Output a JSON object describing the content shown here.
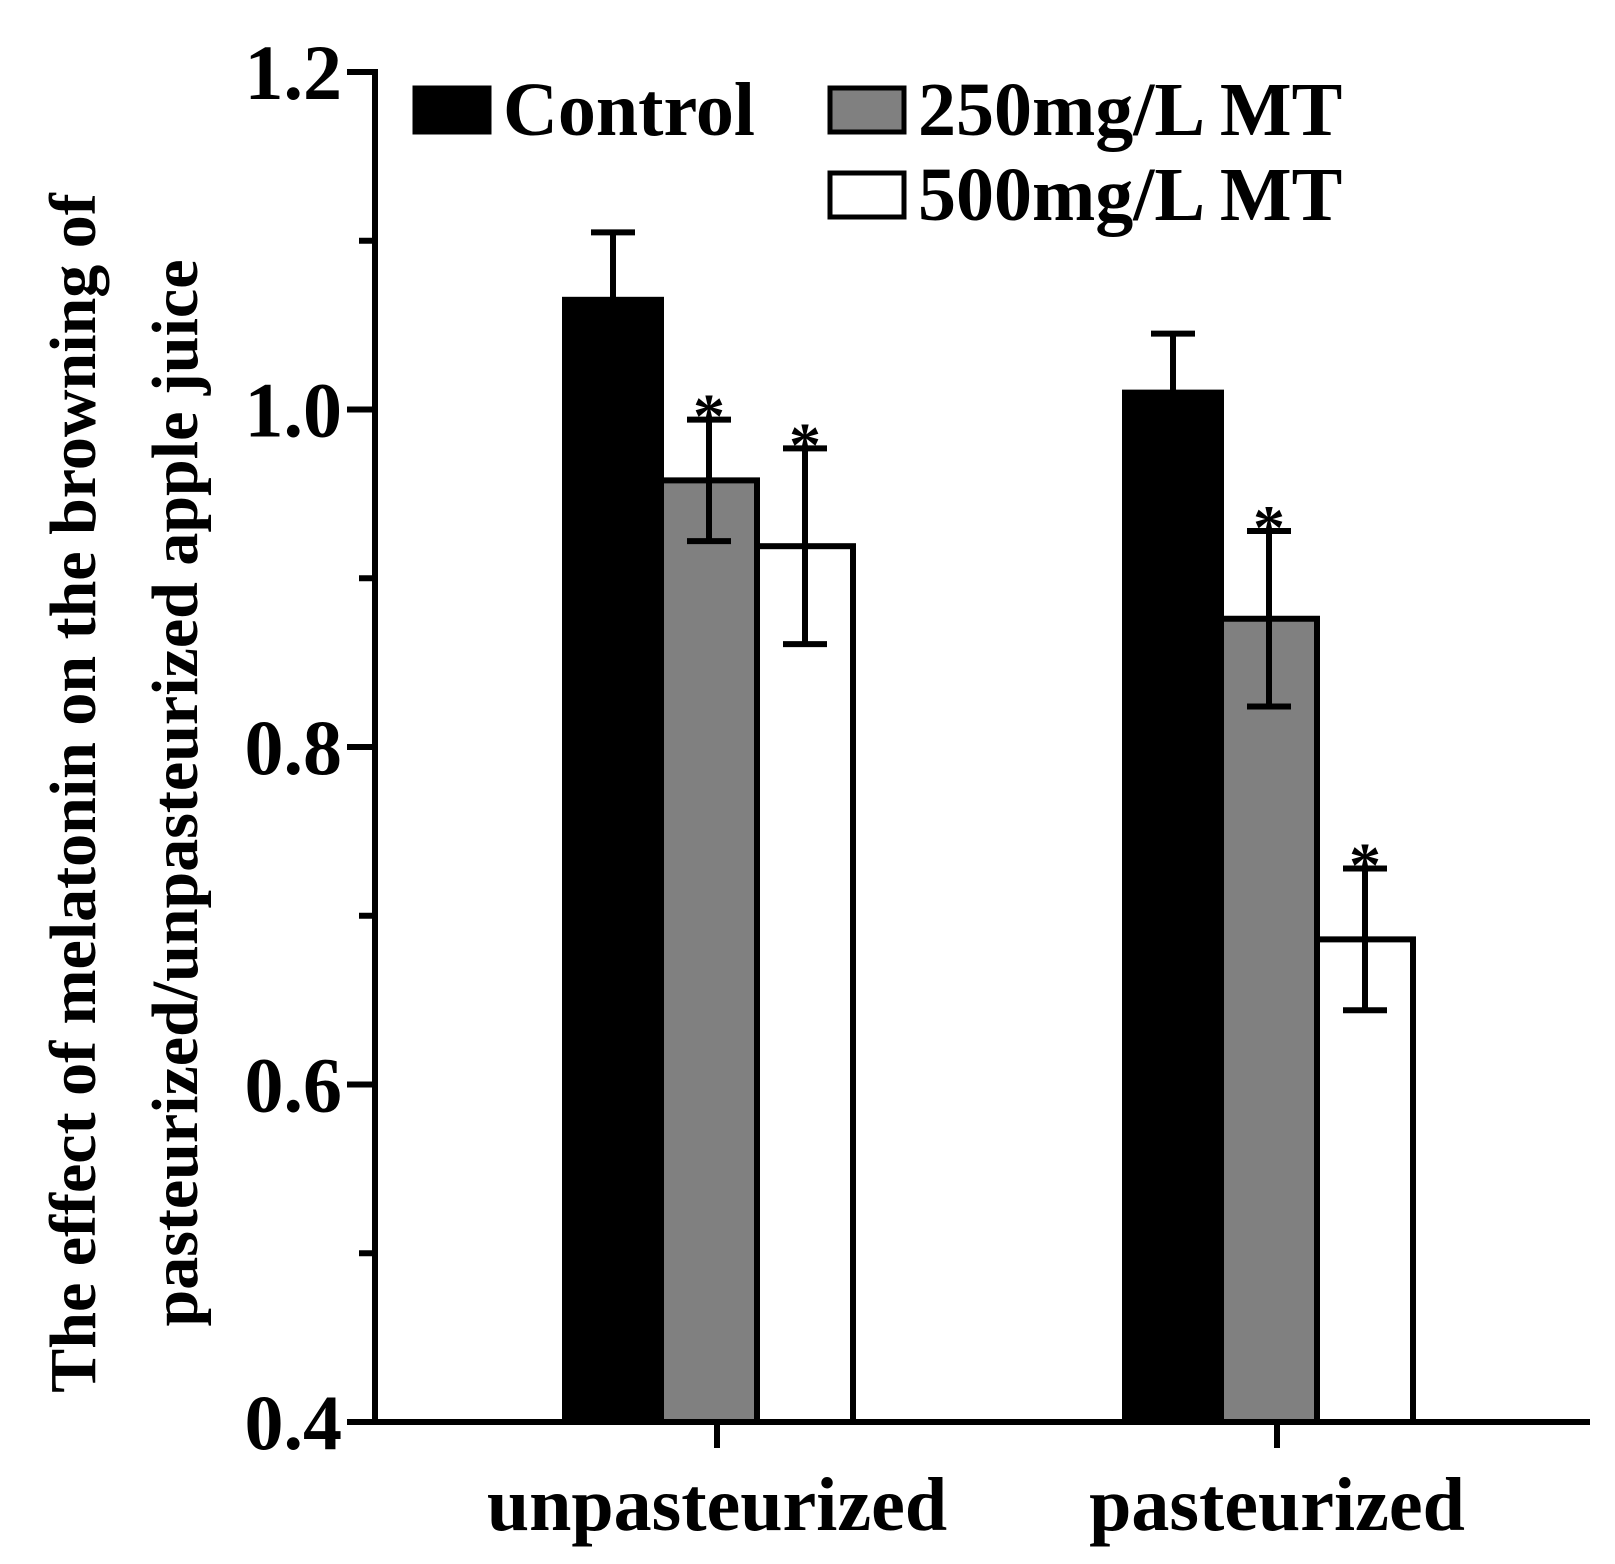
{
  "chart_data": {
    "type": "bar",
    "title": "",
    "xlabel": "",
    "ylabel_lines": [
      "The effect of melatonin on the browning of",
      "pasteurized/unpasteurized apple juice"
    ],
    "categories": [
      "unpasteurized",
      "pasteurized"
    ],
    "ylim": [
      0.4,
      1.2
    ],
    "yticks_major": [
      "0.4",
      "0.6",
      "0.8",
      "1.0",
      "1.2"
    ],
    "yticks_major_values": [
      0.4,
      0.6,
      0.8,
      1.0,
      1.2
    ],
    "yticks_minor_values": [
      0.5,
      0.7,
      0.9,
      1.1
    ],
    "grid": false,
    "legend_position": "top",
    "series": [
      {
        "name": "Control",
        "fill": "#000000",
        "values": [
          1.065,
          1.01
        ],
        "errors": [
          0.04,
          0.035
        ],
        "significance": [
          "",
          ""
        ]
      },
      {
        "name": "250mg/L MT",
        "fill": "#808080",
        "values": [
          0.958,
          0.876
        ],
        "errors": [
          0.036,
          0.052
        ],
        "significance": [
          "*",
          "*"
        ]
      },
      {
        "name": "500mg/L MT",
        "fill": "#ffffff",
        "values": [
          0.919,
          0.686
        ],
        "errors": [
          0.058,
          0.042
        ],
        "significance": [
          "*",
          "*"
        ]
      }
    ]
  }
}
